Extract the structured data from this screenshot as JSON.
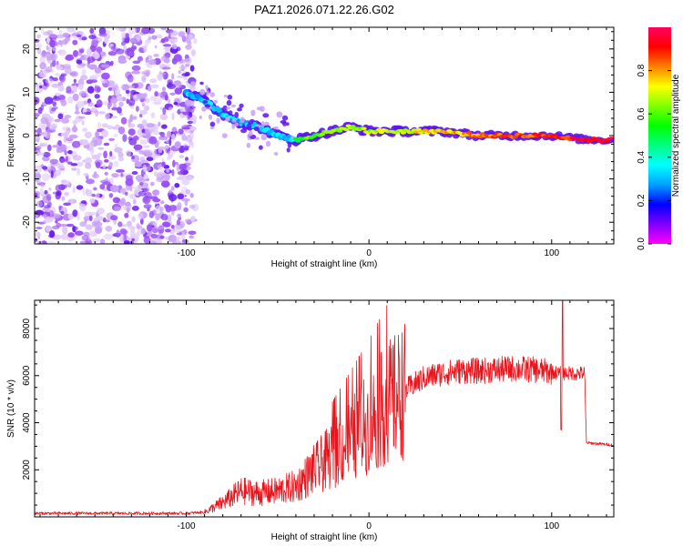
{
  "figure_title": "PAZ1.2026.071.22.26.G02",
  "colors": {
    "snr_line": "#e8141c",
    "cbar_stops": [
      "#ff00ff",
      "#8000ff",
      "#0000ff",
      "#00a0ff",
      "#00ffff",
      "#00ff80",
      "#00ff00",
      "#80ff00",
      "#ffff00",
      "#ff8000",
      "#ff0000",
      "#ff0060"
    ]
  },
  "chart_data": [
    {
      "type": "heatmap",
      "title": "PAZ1.2026.071.22.26.G02",
      "xlabel": "Height of straight line (km)",
      "ylabel": "Frequency (Hz)",
      "xlim": [
        -183,
        134
      ],
      "ylim": [
        -25,
        25
      ],
      "x_ticks": [
        -100,
        0,
        100
      ],
      "y_ticks": [
        20,
        10,
        0,
        -10,
        -20
      ],
      "colorbar": {
        "label": "Normalized spectral amplitude",
        "range": [
          0,
          1
        ],
        "ticks": [
          0.0,
          0.2,
          0.4,
          0.6,
          0.8
        ]
      },
      "ridge": {
        "x": [
          -100,
          -90,
          -80,
          -70,
          -60,
          -50,
          -40,
          -30,
          -20,
          -10,
          0,
          10,
          20,
          40,
          60,
          80,
          100,
          120,
          134
        ],
        "y": [
          10,
          8,
          5,
          3,
          2,
          0,
          -1,
          0,
          1,
          2,
          1,
          1,
          1,
          1,
          0,
          0,
          0,
          -1,
          -1
        ]
      },
      "noise_region_x": [
        -183,
        -95
      ]
    },
    {
      "type": "line",
      "xlabel": "Height of straight line (km)",
      "ylabel": "SNR (10 * v/v)",
      "xlim": [
        -183,
        134
      ],
      "ylim": [
        0,
        9200
      ],
      "x_ticks": [
        -100,
        0,
        100
      ],
      "y_ticks": [
        2000,
        4000,
        6000,
        8000
      ],
      "series": [
        {
          "name": "SNR",
          "envelope_x": [
            -183,
            -120,
            -100,
            -90,
            -80,
            -70,
            -60,
            -50,
            -40,
            -30,
            -20,
            -10,
            0,
            10,
            20,
            30,
            40,
            50,
            60,
            70,
            80,
            90,
            100,
            104,
            106,
            118,
            119,
            134
          ],
          "envelope_y": [
            150,
            150,
            150,
            200,
            600,
            1100,
            1000,
            1100,
            1300,
            2000,
            2600,
            3300,
            4000,
            4800,
            5400,
            5900,
            6100,
            6200,
            6200,
            6250,
            6300,
            6250,
            6150,
            6100,
            6100,
            6100,
            3150,
            3050
          ],
          "spike": {
            "x": 106,
            "y": 9200
          }
        }
      ]
    }
  ]
}
